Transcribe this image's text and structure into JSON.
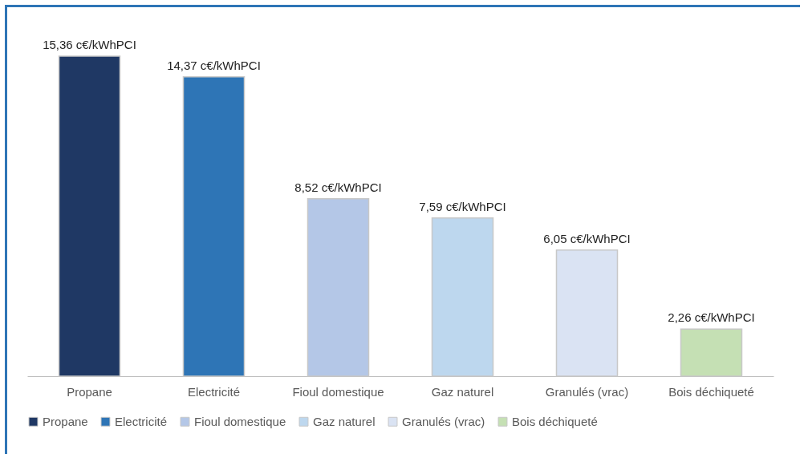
{
  "chart_data": {
    "type": "bar",
    "stacked": true,
    "categories": [
      "Propane",
      "Electricité",
      "Fioul domestique",
      "Gaz naturel",
      "Granulés (vrac)",
      "Bois déchiqueté"
    ],
    "series": [
      {
        "name": "Propane",
        "color": "#1f3864",
        "values": [
          15.36,
          null,
          null,
          null,
          null,
          null
        ],
        "value_labels": [
          "15,36 c€/kWhPCI",
          null,
          null,
          null,
          null,
          null
        ]
      },
      {
        "name": "Electricité",
        "color": "#2e75b6",
        "values": [
          null,
          14.37,
          null,
          null,
          null,
          null
        ],
        "value_labels": [
          null,
          "14,37 c€/kWhPCI",
          null,
          null,
          null,
          null
        ]
      },
      {
        "name": "Fioul domestique",
        "color": "#b4c7e7",
        "values": [
          null,
          null,
          8.52,
          null,
          null,
          null
        ],
        "value_labels": [
          null,
          null,
          "8,52 c€/kWhPCI",
          null,
          null,
          null
        ]
      },
      {
        "name": "Gaz naturel",
        "color": "#bdd7ee",
        "values": [
          null,
          null,
          null,
          7.59,
          null,
          null
        ],
        "value_labels": [
          null,
          null,
          null,
          "7,59 c€/kWhPCI",
          null,
          null
        ]
      },
      {
        "name": "Granulés (vrac)",
        "color": "#dae3f3",
        "values": [
          null,
          null,
          null,
          null,
          6.05,
          null
        ],
        "value_labels": [
          null,
          null,
          null,
          null,
          "6,05 c€/kWhPCI",
          null
        ]
      },
      {
        "name": "Bois déchiqueté",
        "color": "#c5e0b4",
        "values": [
          null,
          null,
          null,
          null,
          null,
          2.26
        ],
        "value_labels": [
          null,
          null,
          null,
          null,
          null,
          "2,26 c€/kWhPCI"
        ]
      }
    ],
    "legend": "bottom"
  }
}
